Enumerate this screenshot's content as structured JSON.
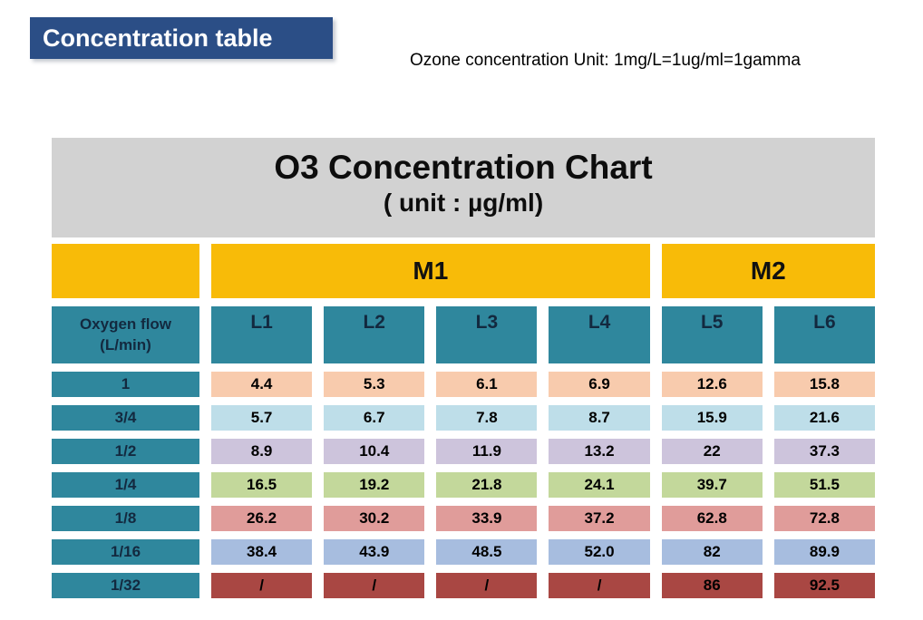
{
  "page": {
    "banner_title": "Concentration table",
    "unit_note": "Ozone concentration Unit: 1mg/L=1ug/ml=1gamma"
  },
  "colors": {
    "banner_bg": "#2B4E86",
    "header_bg": "#D2D2D2",
    "group_bg": "#F8BB08",
    "teal_bg": "#2F879D",
    "teal_text": "#13293F",
    "dark_red_bg": "#A94743"
  },
  "chart_data": {
    "type": "table",
    "title": "O3 Concentration Chart",
    "subtitle": "( unit : µg/ml)",
    "group_headers": [
      {
        "label": "",
        "span": 1
      },
      {
        "label": "M1",
        "span": 4
      },
      {
        "label": "M2",
        "span": 2
      }
    ],
    "first_column": {
      "line1": "Oxygen flow",
      "line2": "(L/min)"
    },
    "columns": [
      "L1",
      "L2",
      "L3",
      "L4",
      "L5",
      "L6"
    ],
    "rows": [
      {
        "label": "1",
        "color": "#F8CBAD",
        "values": [
          "4.4",
          "5.3",
          "6.1",
          "6.9",
          "12.6",
          "15.8"
        ]
      },
      {
        "label": "3/4",
        "color": "#BEDEE9",
        "values": [
          "5.7",
          "6.7",
          "7.8",
          "8.7",
          "15.9",
          "21.6"
        ]
      },
      {
        "label": "1/2",
        "color": "#CDC4DC",
        "values": [
          "8.9",
          "10.4",
          "11.9",
          "13.2",
          "22",
          "37.3"
        ]
      },
      {
        "label": "1/4",
        "color": "#C3D89B",
        "values": [
          "16.5",
          "19.2",
          "21.8",
          "24.1",
          "39.7",
          "51.5"
        ]
      },
      {
        "label": "1/8",
        "color": "#E09C9A",
        "values": [
          "26.2",
          "30.2",
          "33.9",
          "37.2",
          "62.8",
          "72.8"
        ]
      },
      {
        "label": "1/16",
        "color": "#A7BDDF",
        "values": [
          "38.4",
          "43.9",
          "48.5",
          "52.0",
          "82",
          "89.9"
        ]
      },
      {
        "label": "1/32",
        "color": "#A94743",
        "values": [
          "/",
          "/",
          "/",
          "/",
          "86",
          "92.5"
        ]
      }
    ]
  }
}
